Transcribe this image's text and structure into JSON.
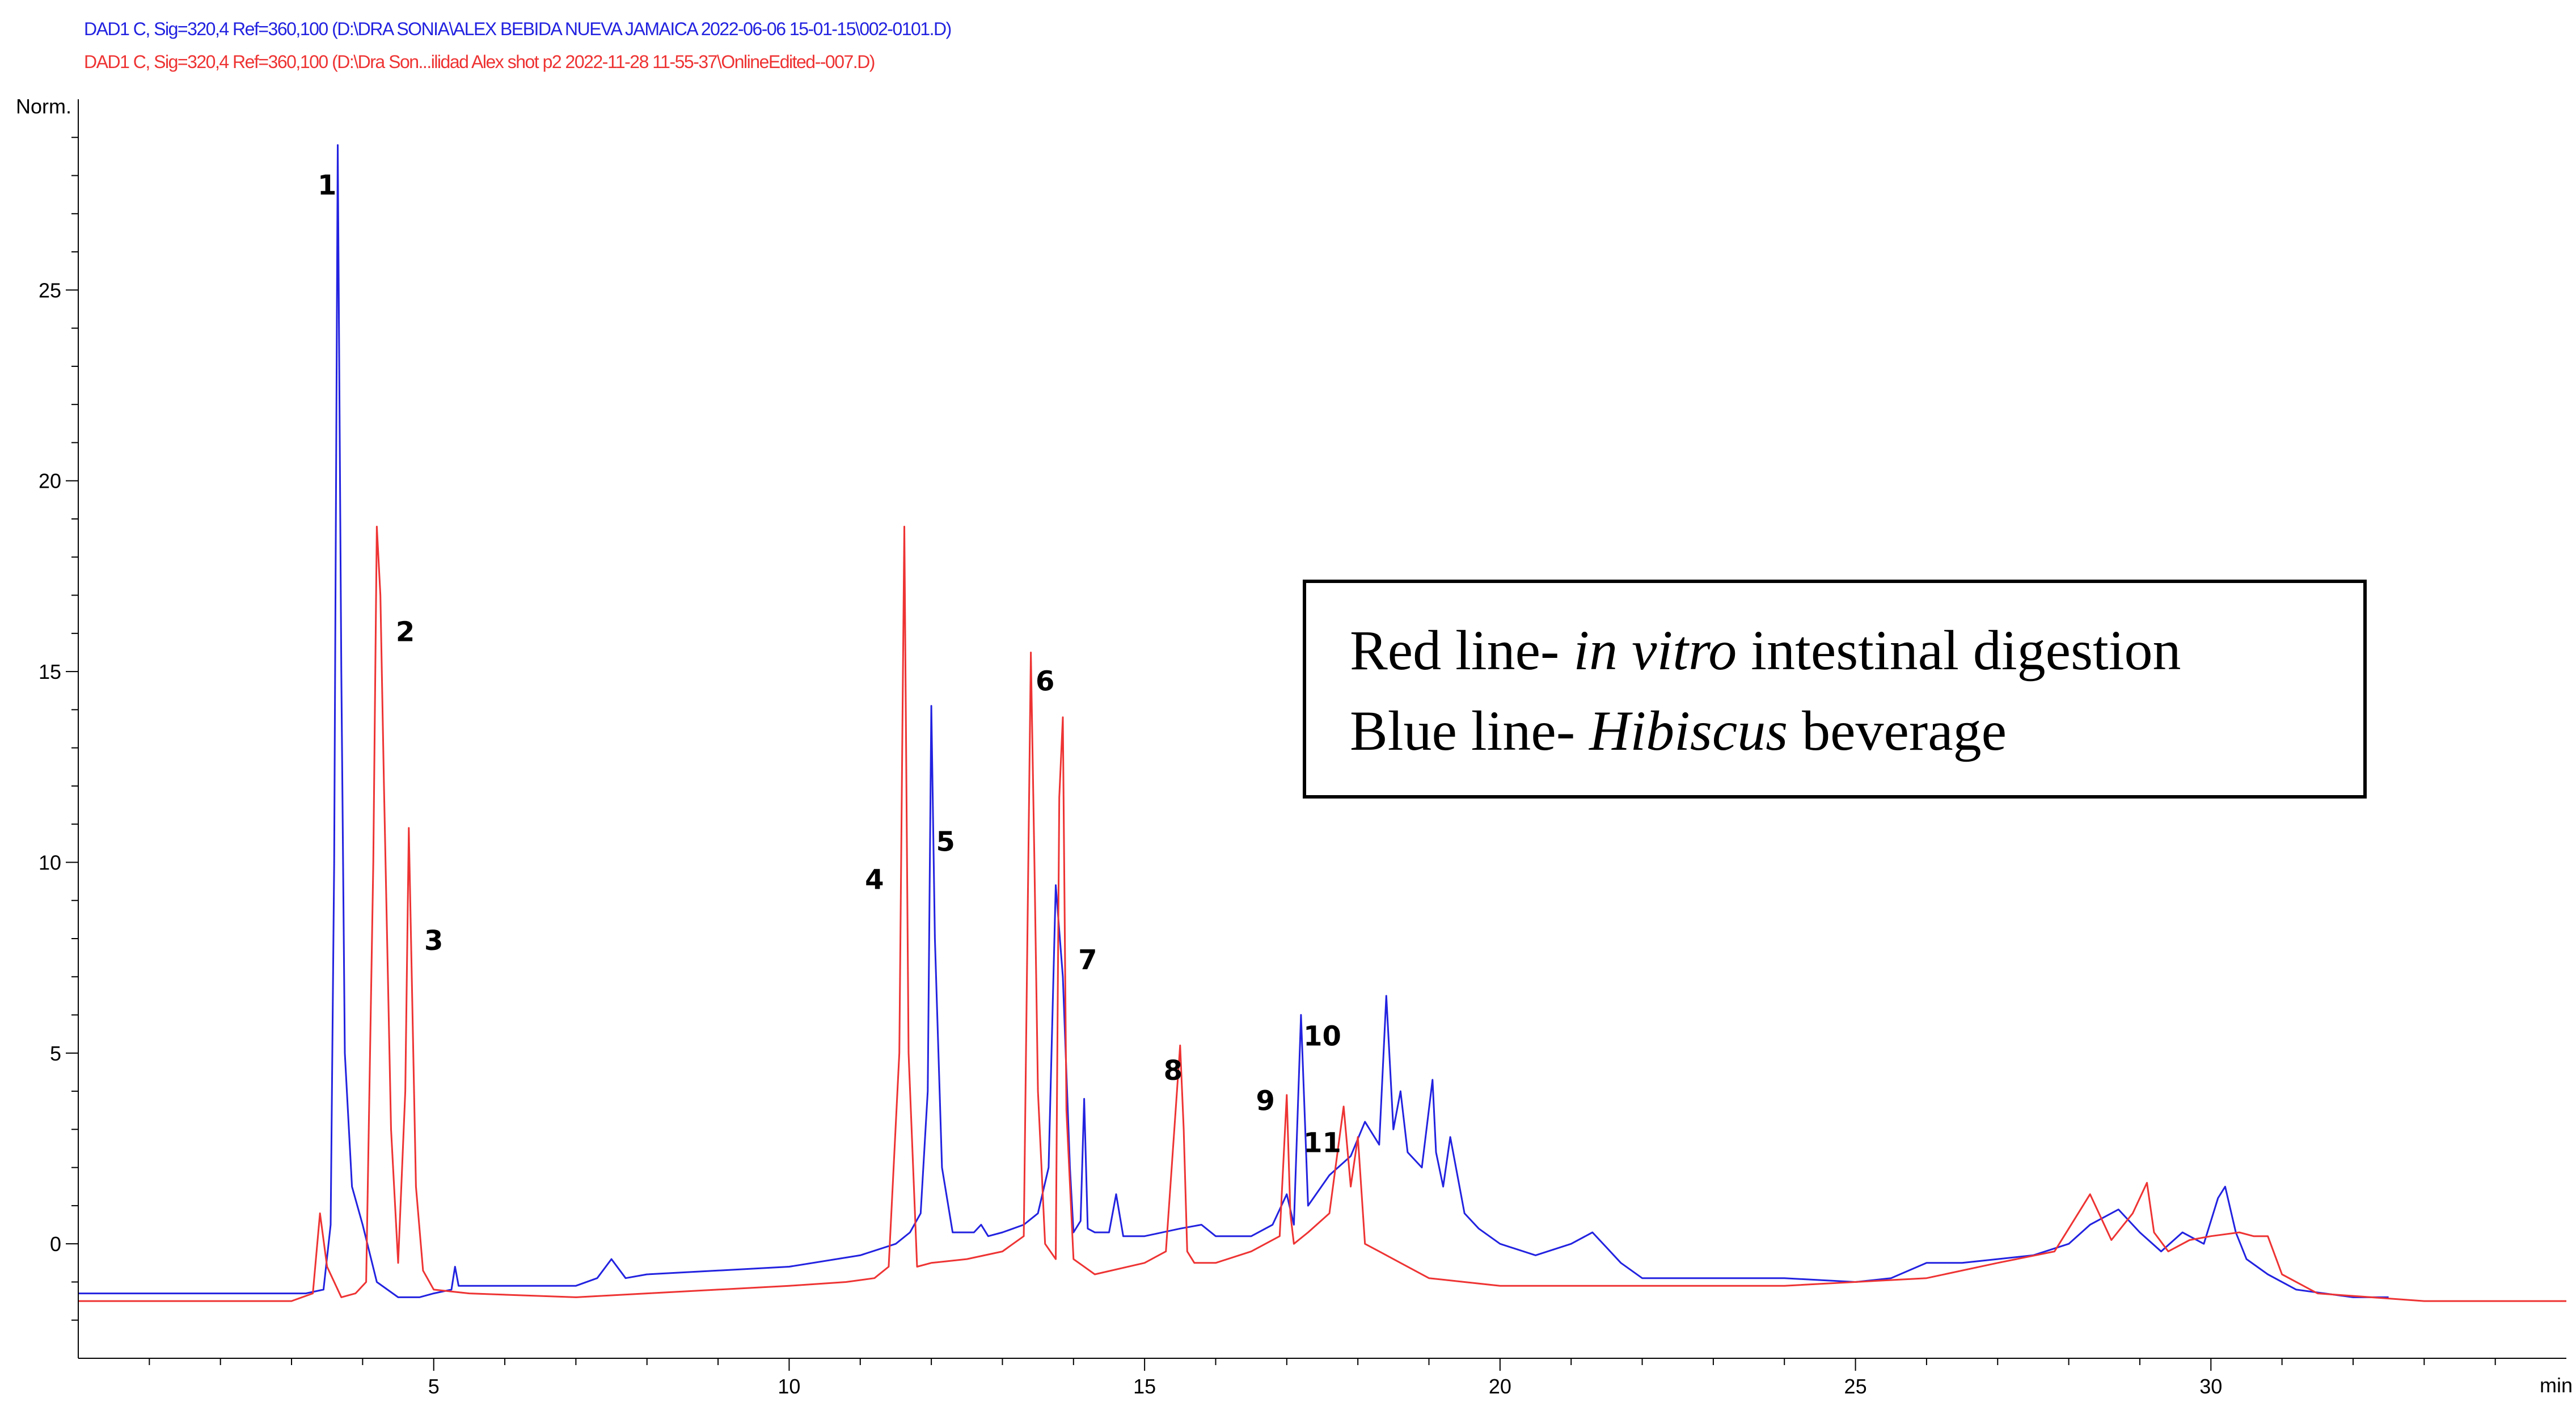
{
  "header": {
    "blue_signal": "DAD1 C, Sig=320,4 Ref=360,100 (D:\\DRA SONIA\\ALEX BEBIDA NUEVA JAMAICA 2022-06-06 15-01-15\\002-0101.D)",
    "red_signal": "DAD1 C, Sig=320,4 Ref=360,100 (D:\\Dra Son...ilidad Alex shot p2 2022-11-28 11-55-37\\OnlineEdited--007.D)"
  },
  "colors": {
    "blue": "#2222e0",
    "red": "#ee3333",
    "axis": "#000000",
    "legend_border": "#000000"
  },
  "legend_box": {
    "line1": {
      "prefix": "Red line- ",
      "italic": "in vitro",
      "suffix": " intestinal digestion"
    },
    "line2": {
      "prefix": "Blue line- ",
      "italic": "Hibiscus",
      "suffix": " beverage"
    }
  },
  "chart_data": {
    "type": "line",
    "xlabel": "min",
    "ylabel": "Norm.",
    "xlim": [
      0,
      35
    ],
    "ylim": [
      -3,
      30
    ],
    "x_ticks": [
      5,
      10,
      15,
      20,
      25,
      30
    ],
    "y_ticks": [
      0,
      5,
      10,
      15,
      20,
      25
    ],
    "peak_labels": [
      {
        "label": "1",
        "x": 3.5,
        "y": 27.5
      },
      {
        "label": "2",
        "x": 4.6,
        "y": 15.8
      },
      {
        "label": "3",
        "x": 5.0,
        "y": 7.7
      },
      {
        "label": "4",
        "x": 11.2,
        "y": 9.3
      },
      {
        "label": "5",
        "x": 12.2,
        "y": 10.3
      },
      {
        "label": "6",
        "x": 13.6,
        "y": 14.5
      },
      {
        "label": "7",
        "x": 14.2,
        "y": 7.2
      },
      {
        "label": "8",
        "x": 15.4,
        "y": 4.3
      },
      {
        "label": "9",
        "x": 16.7,
        "y": 3.5
      },
      {
        "label": "10",
        "x": 17.5,
        "y": 5.2
      },
      {
        "label": "11",
        "x": 17.5,
        "y": 2.4
      }
    ],
    "series": [
      {
        "color": "blue",
        "x": [
          0,
          3.2,
          3.45,
          3.55,
          3.6,
          3.65,
          3.7,
          3.75,
          3.85,
          4.0,
          4.2,
          4.5,
          4.8,
          5.0,
          5.25,
          5.3,
          5.35,
          5.5,
          7.0,
          7.3,
          7.5,
          7.7,
          8.0,
          9.0,
          10.0,
          11.0,
          11.5,
          11.7,
          11.85,
          11.95,
          12.0,
          12.05,
          12.15,
          12.3,
          12.6,
          12.7,
          12.8,
          13.0,
          13.3,
          13.5,
          13.65,
          13.75,
          13.85,
          13.95,
          14.0,
          14.1,
          14.15,
          14.2,
          14.3,
          14.5,
          14.6,
          14.7,
          15.0,
          15.5,
          15.8,
          16.0,
          16.5,
          16.8,
          17.0,
          17.1,
          17.2,
          17.3,
          17.6,
          17.9,
          18.1,
          18.3,
          18.4,
          18.5,
          18.6,
          18.7,
          18.9,
          19.05,
          19.1,
          19.2,
          19.3,
          19.5,
          19.7,
          20.0,
          20.5,
          21.0,
          21.3,
          21.5,
          21.7,
          22.0,
          23.0,
          24.0,
          25.0,
          25.5,
          26.0,
          26.5,
          27.0,
          27.5,
          28.0,
          28.3,
          28.7,
          29.0,
          29.3,
          29.6,
          29.9,
          30.1,
          30.2,
          30.35,
          30.5,
          30.8,
          31.2,
          32.0,
          32.5
        ],
        "y": [
          -1.3,
          -1.3,
          -1.2,
          0.5,
          10,
          28.8,
          15,
          5,
          1.5,
          0.5,
          -1.0,
          -1.4,
          -1.4,
          -1.3,
          -1.2,
          -0.6,
          -1.1,
          -1.1,
          -1.1,
          -0.9,
          -0.4,
          -0.9,
          -0.8,
          -0.7,
          -0.6,
          -0.3,
          0,
          0.3,
          0.8,
          4,
          14.1,
          8,
          2,
          0.3,
          0.3,
          0.5,
          0.2,
          0.3,
          0.5,
          0.8,
          2,
          9.4,
          7.0,
          2,
          0.3,
          0.6,
          3.8,
          0.4,
          0.3,
          0.3,
          1.3,
          0.2,
          0.2,
          0.4,
          0.5,
          0.2,
          0.2,
          0.5,
          1.3,
          0.5,
          6.0,
          1.0,
          1.8,
          2.3,
          3.2,
          2.6,
          6.5,
          3.0,
          4.0,
          2.4,
          2.0,
          4.3,
          2.4,
          1.5,
          2.8,
          0.8,
          0.4,
          0.0,
          -0.3,
          0.0,
          0.3,
          -0.1,
          -0.5,
          -0.9,
          -0.9,
          -0.9,
          -1.0,
          -0.9,
          -0.5,
          -0.5,
          -0.4,
          -0.3,
          0.0,
          0.5,
          0.9,
          0.3,
          -0.2,
          0.3,
          0.0,
          1.2,
          1.5,
          0.3,
          -0.4,
          -0.8,
          -1.2,
          -1.4,
          -1.4
        ]
      },
      {
        "color": "red",
        "x": [
          0,
          3.0,
          3.3,
          3.4,
          3.5,
          3.7,
          3.9,
          4.05,
          4.15,
          4.2,
          4.25,
          4.3,
          4.4,
          4.5,
          4.6,
          4.65,
          4.7,
          4.75,
          4.85,
          5.0,
          5.5,
          7.0,
          8.0,
          9.0,
          10.0,
          10.8,
          11.2,
          11.4,
          11.55,
          11.62,
          11.68,
          11.8,
          12.0,
          12.5,
          13.0,
          13.3,
          13.4,
          13.45,
          13.5,
          13.6,
          13.75,
          13.8,
          13.85,
          13.9,
          14.0,
          14.3,
          15.0,
          15.3,
          15.5,
          15.55,
          15.6,
          15.7,
          16.0,
          16.5,
          16.9,
          17.0,
          17.05,
          17.1,
          17.3,
          17.6,
          17.8,
          17.9,
          18.0,
          18.1,
          18.3,
          18.6,
          19.0,
          19.5,
          20.0,
          22.0,
          24.0,
          26.0,
          27.0,
          27.8,
          28.0,
          28.3,
          28.6,
          28.9,
          29.1,
          29.2,
          29.4,
          29.7,
          30.0,
          30.4,
          30.6,
          30.8,
          31.0,
          31.5,
          33.0,
          35.0
        ],
        "y": [
          -1.5,
          -1.5,
          -1.3,
          0.8,
          -0.6,
          -1.4,
          -1.3,
          -1.0,
          10,
          18.8,
          17,
          12,
          3,
          -0.5,
          4,
          10.9,
          6.2,
          1.5,
          -0.7,
          -1.2,
          -1.3,
          -1.4,
          -1.3,
          -1.2,
          -1.1,
          -1.0,
          -0.9,
          -0.6,
          5,
          18.8,
          5,
          -0.6,
          -0.5,
          -0.4,
          -0.2,
          0.2,
          15.5,
          10,
          4,
          0,
          -0.4,
          11.7,
          13.8,
          3.5,
          -0.4,
          -0.8,
          -0.5,
          -0.2,
          5.2,
          3,
          -0.2,
          -0.5,
          -0.5,
          -0.2,
          0.2,
          3.9,
          0.8,
          0.0,
          0.3,
          0.8,
          3.6,
          1.5,
          2.8,
          0.0,
          -0.2,
          -0.5,
          -0.9,
          -1.0,
          -1.1,
          -1.1,
          -1.1,
          -0.9,
          -0.5,
          -0.2,
          0.4,
          1.3,
          0.1,
          0.8,
          1.6,
          0.3,
          -0.2,
          0.1,
          0.2,
          0.3,
          0.2,
          0.2,
          -0.8,
          -1.3,
          -1.5,
          -1.5
        ]
      }
    ]
  }
}
